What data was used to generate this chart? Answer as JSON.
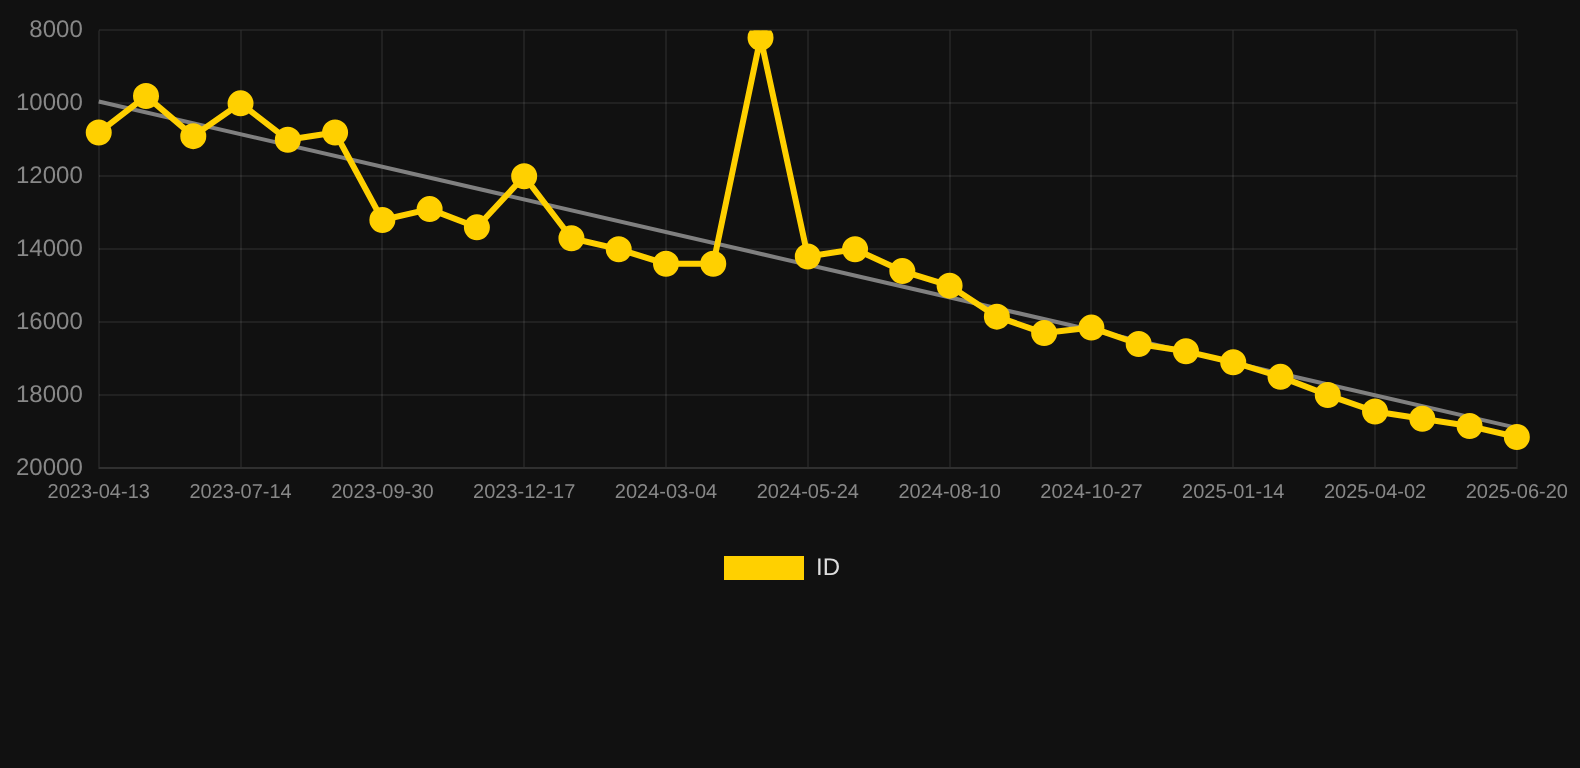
{
  "chart_data": {
    "type": "line",
    "categories": [
      "2023-04-13",
      null,
      null,
      "2023-07-14",
      null,
      null,
      "2023-09-30",
      null,
      null,
      "2023-12-17",
      null,
      null,
      "2024-03-04",
      null,
      null,
      "2024-05-24",
      null,
      null,
      "2024-08-10",
      null,
      null,
      "2024-10-27",
      null,
      null,
      "2025-01-14",
      null,
      null,
      "2025-04-02",
      null,
      null,
      "2025-06-20"
    ],
    "series": [
      {
        "name": "ID",
        "color": "#ffd000",
        "values": [
          10800,
          9800,
          10900,
          10000,
          11000,
          10800,
          13200,
          12900,
          13400,
          12000,
          13700,
          14000,
          14400,
          14400,
          8200,
          14200,
          14000,
          14600,
          15000,
          15850,
          16300,
          16150,
          16600,
          16800,
          17100,
          17500,
          18000,
          18450,
          18650,
          18850,
          19150
        ]
      },
      {
        "type": "line",
        "color": "#808080",
        "marker": "none",
        "values": [
          9950,
          null,
          null,
          null,
          null,
          null,
          null,
          null,
          null,
          null,
          null,
          null,
          null,
          null,
          null,
          null,
          null,
          null,
          null,
          null,
          null,
          null,
          null,
          null,
          null,
          null,
          null,
          null,
          null,
          null,
          18900
        ]
      }
    ],
    "ylim": [
      20000,
      8000
    ],
    "yticks": [
      8000,
      10000,
      12000,
      14000,
      16000,
      18000,
      20000
    ],
    "grid": true,
    "legend": "bottom",
    "marker": "circle",
    "line_style": "solid"
  }
}
